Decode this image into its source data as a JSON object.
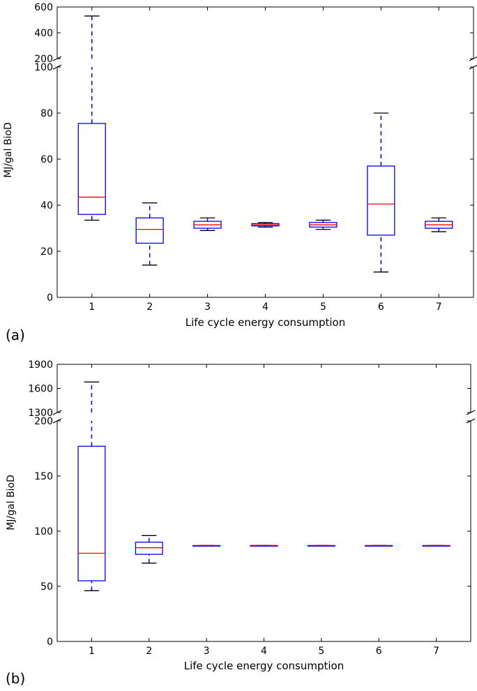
{
  "panels": [
    {
      "label": "(a)"
    },
    {
      "label": "(b)"
    }
  ],
  "chart_data": [
    {
      "type": "box",
      "xlabel": "Life cycle energy consumption",
      "ylabel": "MJ/gal BioD",
      "categories": [
        "1",
        "2",
        "3",
        "4",
        "5",
        "6",
        "7"
      ],
      "broken_axis": {
        "upper": {
          "ylim": [
            200,
            600
          ],
          "ticks": [
            "200",
            "400",
            "600"
          ]
        },
        "lower": {
          "ylim": [
            0,
            100
          ],
          "ticks": [
            "0",
            "20",
            "40",
            "60",
            "80",
            "100"
          ]
        }
      },
      "boxes": [
        {
          "whisker_low": 33.5,
          "q1": 36,
          "median": 43.5,
          "q3": 75.5,
          "whisker_high": 530
        },
        {
          "whisker_low": 14,
          "q1": 23.5,
          "median": 29.5,
          "q3": 34.5,
          "whisker_high": 41
        },
        {
          "whisker_low": 29,
          "q1": 30,
          "median": 31.5,
          "q3": 33,
          "whisker_high": 34.5
        },
        {
          "whisker_low": 30.5,
          "q1": 31,
          "median": 31.5,
          "q3": 32,
          "whisker_high": 32.5
        },
        {
          "whisker_low": 29.5,
          "q1": 30.5,
          "median": 31.5,
          "q3": 32.5,
          "whisker_high": 33.5
        },
        {
          "whisker_low": 11,
          "q1": 27,
          "median": 40.5,
          "q3": 57,
          "whisker_high": 80
        },
        {
          "whisker_low": 28.5,
          "q1": 30,
          "median": 31.5,
          "q3": 33,
          "whisker_high": 34.5
        }
      ]
    },
    {
      "type": "box",
      "xlabel": "Life cycle energy consumption",
      "ylabel": "MJ/gal BioD",
      "categories": [
        "1",
        "2",
        "3",
        "4",
        "5",
        "6",
        "7"
      ],
      "broken_axis": {
        "upper": {
          "ylim": [
            1300,
            1900
          ],
          "ticks": [
            "1300",
            "1600",
            "1900"
          ]
        },
        "lower": {
          "ylim": [
            0,
            200
          ],
          "ticks": [
            "0",
            "50",
            "100",
            "150",
            "200"
          ]
        }
      },
      "boxes": [
        {
          "whisker_low": 46,
          "q1": 55,
          "median": 80,
          "q3": 177,
          "whisker_high": 1680
        },
        {
          "whisker_low": 71,
          "q1": 79,
          "median": 85,
          "q3": 90,
          "whisker_high": 96
        },
        {
          "whisker_low": 87,
          "q1": 87,
          "median": 87,
          "q3": 87,
          "whisker_high": 87
        },
        {
          "whisker_low": 87,
          "q1": 87,
          "median": 87,
          "q3": 87,
          "whisker_high": 87
        },
        {
          "whisker_low": 87,
          "q1": 87,
          "median": 87,
          "q3": 87,
          "whisker_high": 87
        },
        {
          "whisker_low": 87,
          "q1": 87,
          "median": 87,
          "q3": 87,
          "whisker_high": 87
        },
        {
          "whisker_low": 87,
          "q1": 87,
          "median": 87,
          "q3": 87,
          "whisker_high": 87
        }
      ]
    }
  ],
  "colors": {
    "box": "#0000ff",
    "median": "#ff0000",
    "axis": "#000000"
  }
}
